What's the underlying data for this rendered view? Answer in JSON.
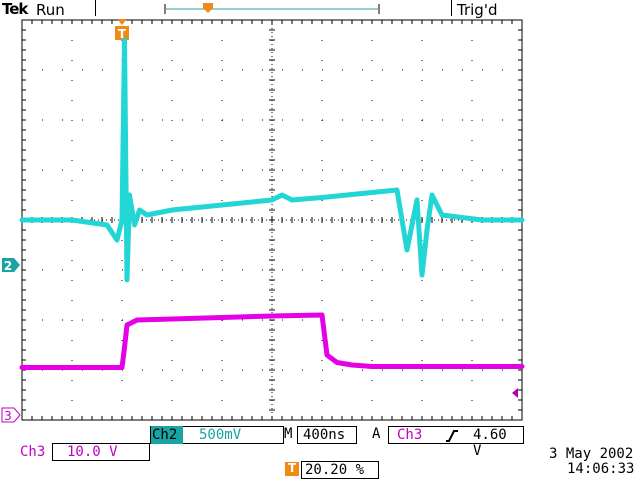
{
  "header": {
    "brand": "Tek",
    "status": "Run",
    "trigger_state": "Trig'd",
    "trigger_marker_icon": "trigger-position-marker"
  },
  "markers": {
    "trigger_letter": "T",
    "ch2_label": "2",
    "ch3_label": "3"
  },
  "colors": {
    "ch2": "#22d6d6",
    "ch3": "#e600e6",
    "trigger": "#f08a14",
    "grid": "#000000"
  },
  "readout": {
    "ch2_name": "Ch2",
    "ch2_scale": "500mV",
    "timebase_prefix": "M",
    "timebase": "400ns",
    "acq_mode": "A",
    "trig_source": "Ch3",
    "trig_level": "4.60 V",
    "ch3_name": "Ch3",
    "ch3_scale": "10.0 V",
    "trigger_position": "20.20 %",
    "date": "3 May 2002",
    "time": "14:06:33"
  },
  "chart_data": {
    "type": "line",
    "series": [
      {
        "name": "Ch2",
        "unit": "V",
        "x_div": [
          0,
          1,
          1.7,
          1.9,
          2,
          2.05,
          2.1,
          2.15,
          2.25,
          2.35,
          2.5,
          3,
          3.5,
          4,
          4.5,
          5,
          5.2,
          5.4,
          6,
          6.5,
          7,
          7.5,
          7.7,
          7.9,
          8,
          8.1,
          8.2,
          8.4,
          8.8,
          9.2,
          10
        ],
        "y_div": [
          0,
          0,
          -0.1,
          -0.4,
          0,
          3.6,
          -1.2,
          0.5,
          -0.1,
          0.2,
          0.1,
          0.2,
          0.25,
          0.3,
          0.35,
          0.4,
          0.5,
          0.4,
          0.45,
          0.5,
          0.55,
          0.6,
          -0.6,
          0.4,
          -1.1,
          -0.2,
          0.5,
          0.1,
          0.05,
          0,
          0
        ]
      },
      {
        "name": "Ch3",
        "unit": "V",
        "x_div": [
          0,
          2,
          2.05,
          2.1,
          2.3,
          3,
          4,
          5,
          6,
          6.05,
          6.1,
          6.3,
          6.6,
          7,
          10
        ],
        "y_div": [
          -2.95,
          -2.95,
          -2.55,
          -2.1,
          -2.0,
          -1.98,
          -1.95,
          -1.92,
          -1.9,
          -2.3,
          -2.7,
          -2.85,
          -2.9,
          -2.93,
          -2.93
        ]
      }
    ],
    "x_divisions": 10,
    "y_divisions": 8,
    "grid": true
  }
}
